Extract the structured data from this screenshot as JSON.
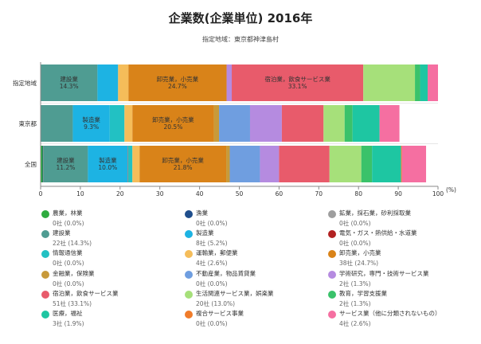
{
  "title": "企業数(企業単位) 2016年",
  "subtitle": "指定地域：東京都神津島村",
  "colors": {
    "agri": "#2eab3f",
    "fish": "#1f4e8c",
    "mining": "#9e9e9e",
    "construction": "#4f9c92",
    "manufacturing": "#1db3e3",
    "utilities": "#b22222",
    "info": "#22c1c3",
    "transport": "#f5bd5a",
    "wholesale": "#d98319",
    "finance": "#c89a3a",
    "realestate": "#6f9ee0",
    "research": "#b58be0",
    "hospitality": "#e85b6b",
    "lifestyle": "#a6e07a",
    "education": "#3ac26a",
    "medical": "#1ec6a2",
    "compound": "#f07c2a",
    "otherservice": "#f56fa1"
  },
  "legend": [
    {
      "key": "agri",
      "name": "農業，林業",
      "value": "0社 (0.0%)"
    },
    {
      "key": "fish",
      "name": "漁業",
      "value": "0社 (0.0%)"
    },
    {
      "key": "mining",
      "name": "鉱業，採石業，砂利採取業",
      "value": "0社 (0.0%)"
    },
    {
      "key": "construction",
      "name": "建設業",
      "value": "22社 (14.3%)"
    },
    {
      "key": "manufacturing",
      "name": "製造業",
      "value": "8社 (5.2%)"
    },
    {
      "key": "utilities",
      "name": "電気・ガス・熱供給・水道業",
      "value": "0社 (0.0%)"
    },
    {
      "key": "info",
      "name": "情報通信業",
      "value": "0社 (0.0%)"
    },
    {
      "key": "transport",
      "name": "運輸業，郵便業",
      "value": "4社 (2.6%)"
    },
    {
      "key": "wholesale",
      "name": "卸売業，小売業",
      "value": "38社 (24.7%)"
    },
    {
      "key": "finance",
      "name": "金融業，保険業",
      "value": "0社 (0.0%)"
    },
    {
      "key": "realestate",
      "name": "不動産業，物品賃貸業",
      "value": "0社 (0.0%)"
    },
    {
      "key": "research",
      "name": "学術研究，専門・技術サービス業",
      "value": "2社 (1.3%)"
    },
    {
      "key": "hospitality",
      "name": "宿泊業，飲食サービス業",
      "value": "51社 (33.1%)"
    },
    {
      "key": "lifestyle",
      "name": "生活関連サービス業，娯楽業",
      "value": "20社 (13.0%)"
    },
    {
      "key": "education",
      "name": "教育，学習支援業",
      "value": "2社 (1.3%)"
    },
    {
      "key": "medical",
      "name": "医療，福祉",
      "value": "3社 (1.9%)"
    },
    {
      "key": "compound",
      "name": "複合サービス事業",
      "value": "0社 (0.0%)"
    },
    {
      "key": "otherservice",
      "name": "サービス業（他に分類されないもの）",
      "value": "4社 (2.6%)"
    }
  ],
  "chart_data": {
    "type": "bar",
    "orientation": "horizontal",
    "stacked": true,
    "title": "企業数(企業単位) 2016年",
    "subtitle": "指定地域：東京都神津島村",
    "xlim": [
      0,
      100
    ],
    "xticks": [
      0,
      10,
      20,
      30,
      40,
      50,
      60,
      70,
      80,
      90,
      100
    ],
    "x_unit": "(%)",
    "categories": [
      "指定地域",
      "東京都",
      "全国"
    ],
    "series": [
      {
        "key": "agri",
        "values": [
          0.0,
          0.1,
          0.5
        ]
      },
      {
        "key": "fish",
        "values": [
          0.0,
          0.0,
          0.1
        ]
      },
      {
        "key": "mining",
        "values": [
          0.0,
          0.0,
          0.1
        ]
      },
      {
        "key": "construction",
        "values": [
          14.3,
          8.0,
          11.2
        ]
      },
      {
        "key": "manufacturing",
        "values": [
          5.2,
          9.3,
          10.0
        ]
      },
      {
        "key": "utilities",
        "values": [
          0.0,
          0.0,
          0.1
        ]
      },
      {
        "key": "info",
        "values": [
          0.0,
          3.7,
          1.1
        ]
      },
      {
        "key": "transport",
        "values": [
          2.6,
          2.0,
          1.8
        ]
      },
      {
        "key": "wholesale",
        "values": [
          24.7,
          20.5,
          21.8
        ]
      },
      {
        "key": "finance",
        "values": [
          0.0,
          1.3,
          0.9
        ]
      },
      {
        "key": "realestate",
        "values": [
          0.0,
          7.8,
          7.6
        ]
      },
      {
        "key": "research",
        "values": [
          1.3,
          8.0,
          4.8
        ]
      },
      {
        "key": "hospitality",
        "values": [
          33.1,
          10.5,
          12.7
        ]
      },
      {
        "key": "lifestyle",
        "values": [
          13.0,
          5.3,
          8.0
        ]
      },
      {
        "key": "education",
        "values": [
          1.3,
          2.0,
          2.7
        ]
      },
      {
        "key": "medical",
        "values": [
          1.9,
          6.8,
          7.3
        ]
      },
      {
        "key": "compound",
        "values": [
          0.0,
          0.0,
          0.2
        ]
      },
      {
        "key": "otherservice",
        "values": [
          2.6,
          5.0,
          6.1
        ]
      }
    ],
    "data_labels": [
      {
        "row": 0,
        "key": "construction",
        "lines": [
          "建設業",
          "14.3%"
        ]
      },
      {
        "row": 0,
        "key": "wholesale",
        "lines": [
          "卸売業，小売業",
          "24.7%"
        ]
      },
      {
        "row": 0,
        "key": "hospitality",
        "lines": [
          "宿泊業，飲食サービス業",
          "33.1%"
        ]
      },
      {
        "row": 1,
        "key": "manufacturing",
        "lines": [
          "製造業",
          "9.3%"
        ]
      },
      {
        "row": 1,
        "key": "wholesale",
        "lines": [
          "卸売業，小売業",
          "20.5%"
        ]
      },
      {
        "row": 2,
        "key": "construction",
        "lines": [
          "建設業",
          "11.2%"
        ]
      },
      {
        "row": 2,
        "key": "manufacturing",
        "lines": [
          "製造業",
          "10.0%"
        ]
      },
      {
        "row": 2,
        "key": "wholesale",
        "lines": [
          "卸売業，小売業",
          "21.8%"
        ]
      }
    ]
  }
}
